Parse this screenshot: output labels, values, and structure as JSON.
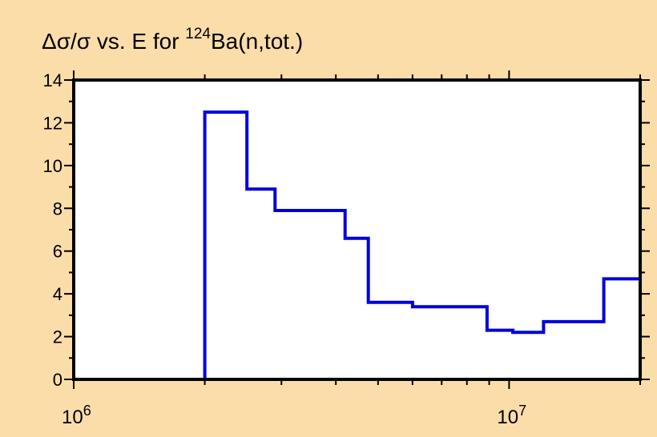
{
  "colors": {
    "background": "#FBDDAA",
    "plot_area": "#FFFFFF",
    "series": "#0000DD",
    "frame": "#000000"
  },
  "title": {
    "prefix": "Δσ/σ vs. E for ",
    "superscript": "124",
    "suffix": "Ba(n,tot.)"
  },
  "chart_data": {
    "type": "line",
    "style": "step",
    "title": "Δσ/σ vs. E for 124Ba(n,tot.)",
    "xlabel": "",
    "ylabel": "",
    "x_scale": "log",
    "xlim": [
      1000000,
      20000000
    ],
    "ylim": [
      0,
      14
    ],
    "grid": false,
    "y_ticks": [
      "0",
      "2",
      "4",
      "6",
      "8",
      "10",
      "12",
      "14"
    ],
    "x_tick_labels": [
      {
        "value": 1000000,
        "base": "10",
        "exp": "6"
      },
      {
        "value": 10000000,
        "base": "10",
        "exp": "7"
      }
    ],
    "series": [
      {
        "edges": [
          2000000,
          2500000,
          2900000,
          4200000,
          4750000,
          6000000,
          8900000,
          10200000,
          12000000,
          13500000,
          16500000,
          20000000
        ],
        "values": [
          12.5,
          8.9,
          7.9,
          6.6,
          3.6,
          3.4,
          2.3,
          2.2,
          2.7,
          2.7,
          4.7
        ]
      }
    ]
  }
}
